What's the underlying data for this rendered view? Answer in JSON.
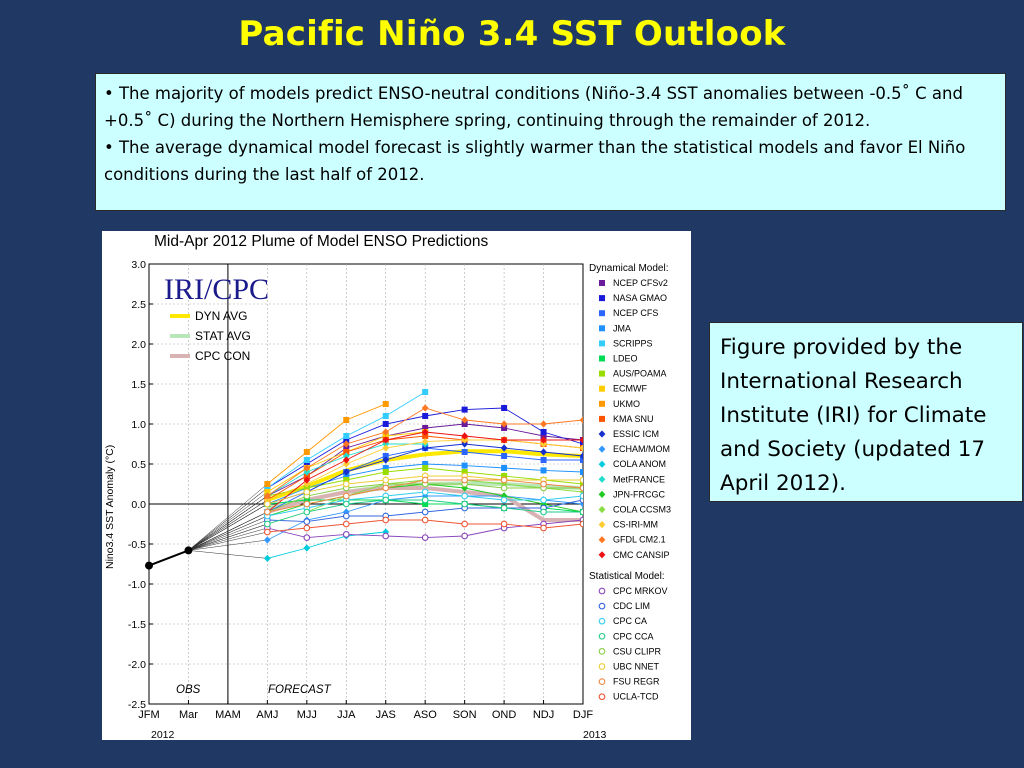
{
  "slide": {
    "title": "Pacific Niño 3.4 SST Outlook",
    "bullets": [
      "• The majority of models predict ENSO-neutral conditions (Niño-3.4 SST anomalies between -0.5˚ C and +0.5˚ C) during the Northern Hemisphere spring, continuing through the remainder of 2012.",
      "•  The average dynamical model forecast is slightly warmer than the statistical models and favor El Niño conditions during the last half of 2012."
    ],
    "caption": "Figure provided by the International Research Institute (IRI) for Climate and Society (updated 17 April 2012)."
  },
  "chart_data": {
    "type": "line",
    "title": "Mid-Apr 2012 Plume of Model ENSO Predictions",
    "logo": "IRI/CPC",
    "ylabel": "Nino3.4 SST Anomaly (°C)",
    "ylim": [
      -2.5,
      3.0
    ],
    "y_ticks": [
      "3.0",
      "2.5",
      "2.0",
      "1.5",
      "1.0",
      "0.5",
      "0.0",
      "-0.5",
      "-1.0",
      "-1.5",
      "-2.0",
      "-2.5"
    ],
    "categories": [
      "JFM",
      "Mar",
      "MAM",
      "AMJ",
      "MJJ",
      "JJA",
      "JAS",
      "ASO",
      "SON",
      "OND",
      "NDJ",
      "DJF"
    ],
    "year_labels": [
      "2012",
      "2013"
    ],
    "period_labels": [
      "OBS",
      "FORECAST"
    ],
    "grid": true,
    "observed": {
      "x": [
        "JFM",
        "Mar"
      ],
      "values": [
        -0.77,
        -0.58
      ]
    },
    "avg_legend": [
      {
        "name": "DYN AVG",
        "color": "#ffe800"
      },
      {
        "name": "STAT AVG",
        "color": "#b8e6b8"
      },
      {
        "name": "CPC CON",
        "color": "#d9b3b3"
      }
    ],
    "avg_series": [
      {
        "key": "dyn",
        "color": "#ffe800",
        "values": [
          null,
          null,
          null,
          0.05,
          0.22,
          0.42,
          0.55,
          0.62,
          0.66,
          0.66,
          0.62,
          0.6
        ]
      },
      {
        "key": "stat",
        "color": "#b8e6b8",
        "values": [
          null,
          null,
          null,
          -0.05,
          0.05,
          0.15,
          0.22,
          0.25,
          0.26,
          0.25,
          0.22,
          0.2
        ]
      },
      {
        "key": "con",
        "color": "#d9b3b3",
        "values": [
          null,
          null,
          null,
          -0.1,
          0.05,
          0.15,
          0.2,
          0.2,
          0.15,
          0.1,
          -0.2,
          -0.2
        ]
      }
    ],
    "legend_dynamical_title": "Dynamical Model:",
    "legend_statistical_title": "Statistical Model:",
    "series": [
      {
        "name": "NCEP CFSv2",
        "group": "dynamical",
        "color": "#6a1b9a",
        "values": [
          null,
          null,
          null,
          0.1,
          0.35,
          0.7,
          0.85,
          0.95,
          1.0,
          0.95,
          0.85,
          0.8
        ]
      },
      {
        "name": "NASA GMAO",
        "group": "dynamical",
        "color": "#1a1adb",
        "values": [
          null,
          null,
          null,
          0.2,
          0.5,
          0.8,
          1.0,
          1.1,
          1.18,
          1.2,
          0.9,
          0.75
        ]
      },
      {
        "name": "NCEP CFS",
        "group": "dynamical",
        "color": "#2a66ff",
        "values": [
          null,
          null,
          null,
          -0.1,
          0.15,
          0.4,
          0.6,
          0.7,
          0.65,
          0.6,
          0.55,
          0.55
        ]
      },
      {
        "name": "JMA",
        "group": "dynamical",
        "color": "#1e90ff",
        "values": [
          null,
          null,
          null,
          0.0,
          0.2,
          0.35,
          0.45,
          0.5,
          0.48,
          0.45,
          0.42,
          0.4
        ]
      },
      {
        "name": "SCRIPPS",
        "group": "dynamical",
        "color": "#33ccff",
        "values": [
          null,
          null,
          null,
          0.2,
          0.55,
          0.85,
          1.1,
          1.4,
          null,
          null,
          null,
          null
        ]
      },
      {
        "name": "LDEO",
        "group": "dynamical",
        "color": "#00dd55",
        "values": [
          null,
          null,
          null,
          0.0,
          0.05,
          0.05,
          0.05,
          0.0,
          0.0,
          -0.05,
          -0.05,
          -0.1
        ]
      },
      {
        "name": "AUS/POAMA",
        "group": "dynamical",
        "color": "#99dd00",
        "values": [
          null,
          null,
          null,
          0.1,
          0.2,
          0.3,
          0.4,
          0.45,
          0.4,
          0.35,
          0.3,
          0.25
        ]
      },
      {
        "name": "ECMWF",
        "group": "dynamical",
        "color": "#ffcc00",
        "values": [
          null,
          null,
          null,
          0.15,
          0.45,
          0.65,
          0.85,
          0.9,
          null,
          null,
          null,
          null
        ]
      },
      {
        "name": "UKMO",
        "group": "dynamical",
        "color": "#ff9900",
        "values": [
          null,
          null,
          null,
          0.25,
          0.65,
          1.05,
          1.25,
          null,
          null,
          null,
          null,
          null
        ]
      },
      {
        "name": "KMA SNU",
        "group": "dynamical",
        "color": "#ff5500",
        "values": [
          null,
          null,
          null,
          0.05,
          0.35,
          0.65,
          0.8,
          0.85,
          0.8,
          0.8,
          0.75,
          0.7
        ]
      },
      {
        "name": "ESSIC ICM",
        "group": "dynamical",
        "color": "#1530cc",
        "values": [
          null,
          null,
          null,
          0.0,
          0.15,
          0.4,
          0.55,
          0.7,
          0.75,
          0.7,
          0.65,
          0.6
        ]
      },
      {
        "name": "ECHAM/MOM",
        "group": "dynamical",
        "color": "#3399ff",
        "values": [
          null,
          null,
          null,
          -0.45,
          -0.2,
          -0.1,
          0.05,
          0.1,
          0.1,
          0.1,
          0.05,
          0.0
        ]
      },
      {
        "name": "COLA ANOM",
        "group": "dynamical",
        "color": "#00ccdd",
        "values": [
          null,
          null,
          null,
          -0.68,
          -0.55,
          -0.4,
          -0.35,
          null,
          null,
          null,
          null,
          null
        ]
      },
      {
        "name": "MetFRANCE",
        "group": "dynamical",
        "color": "#22ddcc",
        "values": [
          null,
          null,
          null,
          0.1,
          0.4,
          0.6,
          0.75,
          0.75,
          null,
          null,
          null,
          null
        ]
      },
      {
        "name": "JPN-FRCGC",
        "group": "dynamical",
        "color": "#22cc22",
        "values": [
          null,
          null,
          null,
          -0.15,
          0.0,
          0.1,
          0.2,
          0.25,
          0.2,
          0.1,
          0.0,
          -0.1
        ]
      },
      {
        "name": "COLA CCSM3",
        "group": "dynamical",
        "color": "#88dd44",
        "values": [
          null,
          null,
          null,
          -0.25,
          -0.1,
          0.1,
          0.25,
          0.3,
          0.3,
          0.25,
          0.2,
          0.15
        ]
      },
      {
        "name": "CS-IRI-MM",
        "group": "dynamical",
        "color": "#ffcc33",
        "values": [
          null,
          null,
          null,
          0.05,
          0.25,
          0.5,
          0.7,
          0.78,
          0.8,
          0.8,
          0.75,
          0.7
        ]
      },
      {
        "name": "GFDL CM2.1",
        "group": "dynamical",
        "color": "#ff7722",
        "values": [
          null,
          null,
          null,
          0.1,
          0.45,
          0.75,
          0.9,
          1.2,
          1.05,
          1.0,
          1.0,
          1.05
        ]
      },
      {
        "name": "CMC CANSIP",
        "group": "dynamical",
        "color": "#ee1111",
        "values": [
          null,
          null,
          null,
          -0.1,
          0.3,
          0.55,
          0.8,
          0.9,
          0.85,
          0.8,
          0.8,
          0.8
        ]
      },
      {
        "name": "CPC MRKOV",
        "group": "statistical",
        "color": "#8844bb",
        "values": [
          null,
          null,
          null,
          -0.3,
          -0.42,
          -0.38,
          -0.4,
          -0.42,
          -0.4,
          -0.3,
          -0.25,
          -0.2
        ]
      },
      {
        "name": "CDC LIM",
        "group": "statistical",
        "color": "#3366dd",
        "values": [
          null,
          null,
          null,
          -0.2,
          -0.22,
          -0.15,
          -0.15,
          -0.1,
          -0.05,
          -0.05,
          -0.05,
          0.05
        ]
      },
      {
        "name": "CPC CA",
        "group": "statistical",
        "color": "#33ccee",
        "values": [
          null,
          null,
          null,
          -0.15,
          -0.05,
          0.05,
          0.1,
          0.15,
          0.1,
          0.05,
          0.05,
          0.1
        ]
      },
      {
        "name": "CPC CCA",
        "group": "statistical",
        "color": "#22cc88",
        "values": [
          null,
          null,
          null,
          -0.25,
          -0.1,
          0.0,
          0.05,
          0.05,
          0.0,
          -0.05,
          -0.1,
          -0.1
        ]
      },
      {
        "name": "CSU CLIPR",
        "group": "statistical",
        "color": "#88cc44",
        "values": [
          null,
          null,
          null,
          -0.1,
          0.1,
          0.2,
          0.25,
          0.25,
          0.25,
          0.2,
          0.2,
          0.2
        ]
      },
      {
        "name": "UBC NNET",
        "group": "statistical",
        "color": "#eecc33",
        "values": [
          null,
          null,
          null,
          0.0,
          0.15,
          0.25,
          0.3,
          0.35,
          0.35,
          0.3,
          0.3,
          0.3
        ]
      },
      {
        "name": "FSU REGR",
        "group": "statistical",
        "color": "#ee8844",
        "values": [
          null,
          null,
          null,
          -0.1,
          0.0,
          0.1,
          0.2,
          0.3,
          0.3,
          0.3,
          0.25,
          0.2
        ]
      },
      {
        "name": "UCLA-TCD",
        "group": "statistical",
        "color": "#ee5533",
        "values": [
          null,
          null,
          null,
          -0.35,
          -0.3,
          -0.25,
          -0.2,
          -0.2,
          -0.25,
          -0.25,
          -0.3,
          -0.25
        ]
      }
    ]
  }
}
